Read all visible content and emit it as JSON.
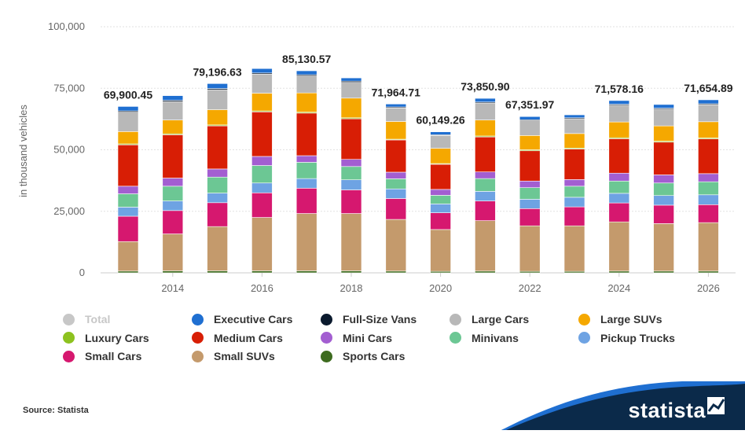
{
  "chart_data": {
    "type": "stacked-bar",
    "ylabel": "in thousand vehicles",
    "ylim": [
      0,
      100000
    ],
    "yticks": [
      "0",
      "25,000",
      "50,000",
      "75,000",
      "100,000"
    ],
    "xtick_labels": [
      "2014",
      "2016",
      "2018",
      "2020",
      "2022",
      "2024",
      "2026"
    ],
    "categories": [
      "2013",
      "2014",
      "2015",
      "2016",
      "2017",
      "2018",
      "2019",
      "2020",
      "2021",
      "2022",
      "2023",
      "2024",
      "2025",
      "2026"
    ],
    "series": [
      {
        "name": "Sports Cars",
        "color": "#3d6b1f",
        "values": [
          700,
          800,
          800,
          800,
          800,
          800,
          700,
          600,
          700,
          600,
          600,
          700,
          700,
          700
        ]
      },
      {
        "name": "Small SUVs",
        "color": "#c49a6c",
        "values": [
          12000,
          15000,
          18000,
          21700,
          23300,
          23300,
          21000,
          17000,
          20500,
          18500,
          18500,
          20000,
          19300,
          19700
        ]
      },
      {
        "name": "Small Cars",
        "color": "#d6186f",
        "values": [
          10300,
          9500,
          9700,
          10000,
          10300,
          9600,
          8500,
          6800,
          8000,
          7000,
          7700,
          7700,
          7500,
          7300
        ]
      },
      {
        "name": "Pickup Trucks",
        "color": "#6ea3e3",
        "values": [
          3700,
          3900,
          3900,
          4000,
          3900,
          4100,
          3900,
          3600,
          3900,
          3800,
          3900,
          3900,
          3900,
          4000
        ]
      },
      {
        "name": "Minivans",
        "color": "#6cc794",
        "values": [
          5400,
          6000,
          6500,
          7100,
          6600,
          5400,
          4100,
          3500,
          5200,
          4700,
          4500,
          5000,
          5100,
          5300
        ]
      },
      {
        "name": "Mini Cars",
        "color": "#a35ed1",
        "values": [
          3100,
          3300,
          3300,
          3700,
          2700,
          2900,
          2700,
          2400,
          2700,
          2700,
          2700,
          3200,
          3300,
          3300
        ]
      },
      {
        "name": "Medium Cars",
        "color": "#d81e05",
        "values": [
          16800,
          17600,
          17500,
          18100,
          17300,
          16500,
          13100,
          10200,
          14200,
          12300,
          12400,
          14000,
          13300,
          14100
        ]
      },
      {
        "name": "Luxury Cars",
        "color": "#8dc21f",
        "values": [
          400,
          400,
          400,
          400,
          400,
          400,
          300,
          300,
          400,
          400,
          400,
          400,
          400,
          400
        ]
      },
      {
        "name": "Large SUVs",
        "color": "#f5a800",
        "values": [
          5000,
          5600,
          6200,
          7200,
          7800,
          8000,
          7200,
          6200,
          6500,
          5800,
          5900,
          6400,
          6200,
          6600
        ]
      },
      {
        "name": "Large Cars",
        "color": "#b8b8b8",
        "values": [
          7900,
          7500,
          8100,
          7700,
          6900,
          6400,
          5500,
          5200,
          6900,
          6000,
          6000,
          6800,
          6800,
          6900
        ]
      },
      {
        "name": "Full-Size Vans",
        "color": "#0b1a2e",
        "values": [
          500,
          500,
          500,
          500,
          500,
          500,
          400,
          300,
          400,
          400,
          400,
          400,
          400,
          400
        ]
      },
      {
        "name": "Executive Cars",
        "color": "#1f6fd1",
        "values": [
          1800,
          1900,
          2000,
          1800,
          1600,
          1300,
          1200,
          1200,
          1500,
          1300,
          1200,
          1500,
          1500,
          1600
        ]
      }
    ],
    "total_labels": [
      {
        "index": 0,
        "text": "69,900.45"
      },
      {
        "index": 2,
        "text": "79,196.63"
      },
      {
        "index": 4,
        "text": "85,130.57"
      },
      {
        "index": 6,
        "text": "71,964.71"
      },
      {
        "index": 7,
        "text": "60,149.26"
      },
      {
        "index": 8,
        "text": "73,850.90"
      },
      {
        "index": 9,
        "text": "67,351.97"
      },
      {
        "index": 11,
        "text": "71,578.16"
      },
      {
        "index": 13,
        "text": "71,654.89"
      }
    ],
    "legend": [
      {
        "name": "Total",
        "color": "#c7c7c7",
        "disabled": true
      },
      {
        "name": "Executive Cars",
        "color": "#1f6fd1"
      },
      {
        "name": "Full-Size Vans",
        "color": "#0b1a2e"
      },
      {
        "name": "Large Cars",
        "color": "#b8b8b8"
      },
      {
        "name": "Large SUVs",
        "color": "#f5a800"
      },
      {
        "name": "Luxury Cars",
        "color": "#8dc21f"
      },
      {
        "name": "Medium Cars",
        "color": "#d81e05"
      },
      {
        "name": "Mini Cars",
        "color": "#a35ed1"
      },
      {
        "name": "Minivans",
        "color": "#6cc794"
      },
      {
        "name": "Pickup Trucks",
        "color": "#6ea3e3"
      },
      {
        "name": "Small Cars",
        "color": "#d6186f"
      },
      {
        "name": "Small SUVs",
        "color": "#c49a6c"
      },
      {
        "name": "Sports Cars",
        "color": "#3d6b1f"
      }
    ]
  },
  "source": "Source: Statista",
  "brand": "statista",
  "brand_color": "#0b2a4a",
  "brand_accent": "#1f6fd1"
}
